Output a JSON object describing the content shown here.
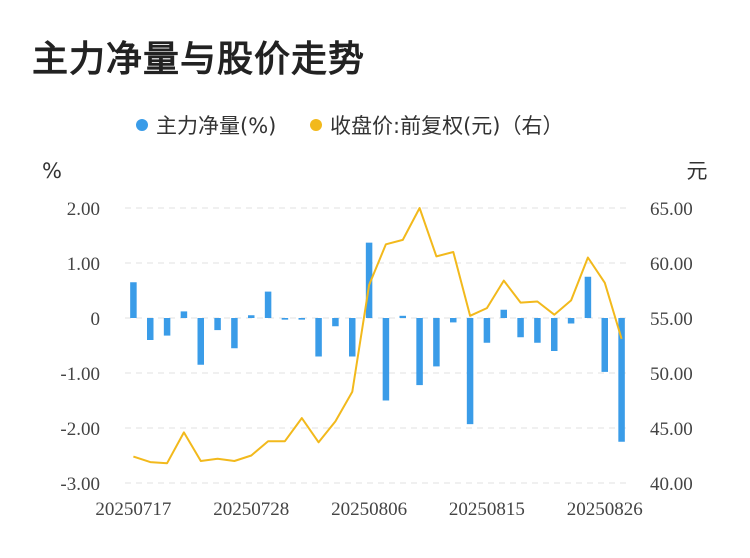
{
  "title": "主力净量与股价走势",
  "colors": {
    "bar": "#3a9ce8",
    "line": "#f2b91c",
    "grid": "#e2e2e2",
    "text": "#444444"
  },
  "chart_data": {
    "type": "bar+line",
    "legend": [
      {
        "label": "主力净量(%)",
        "color": "#3a9ce8",
        "icon": "dot"
      },
      {
        "label": "收盘价:前复权(元)（右）",
        "color": "#f2b91c",
        "icon": "dot"
      }
    ],
    "legend_position": "top-center",
    "left_axis": {
      "unit": "%",
      "ticks": [
        "2.00",
        "1.00",
        "0",
        "-1.00",
        "-2.00",
        "-3.00"
      ],
      "ylim": [
        -3,
        2
      ]
    },
    "right_axis": {
      "unit": "元",
      "ticks": [
        "65.00",
        "60.00",
        "55.00",
        "50.00",
        "45.00",
        "40.00"
      ],
      "ylim": [
        40,
        65
      ]
    },
    "x_tick_labels": [
      "20250717",
      "20250728",
      "20250806",
      "20250815",
      "20250826"
    ],
    "x_tick_index": [
      0,
      7,
      14,
      21,
      28
    ],
    "grid": true,
    "series": [
      {
        "name": "主力净量(%)",
        "kind": "bar",
        "axis": "left",
        "values": [
          0.65,
          -0.4,
          -0.32,
          0.12,
          -0.85,
          -0.22,
          -0.55,
          0.05,
          0.48,
          -0.03,
          -0.03,
          -0.7,
          -0.15,
          -0.7,
          1.37,
          -1.5,
          0.04,
          -1.22,
          -0.88,
          -0.08,
          -1.93,
          -0.45,
          0.15,
          -0.35,
          -0.45,
          -0.6,
          -0.1,
          0.75,
          -0.98,
          -2.25
        ]
      },
      {
        "name": "收盘价:前复权(元)（右）",
        "kind": "line",
        "axis": "right",
        "values": [
          42.4,
          41.9,
          41.8,
          44.6,
          42.0,
          42.2,
          42.0,
          42.5,
          43.8,
          43.8,
          45.9,
          43.7,
          45.6,
          48.3,
          58.0,
          61.7,
          62.1,
          65.0,
          60.6,
          61.0,
          55.2,
          55.9,
          58.4,
          56.4,
          56.5,
          55.3,
          56.6,
          60.5,
          58.2,
          53.1
        ]
      }
    ]
  }
}
